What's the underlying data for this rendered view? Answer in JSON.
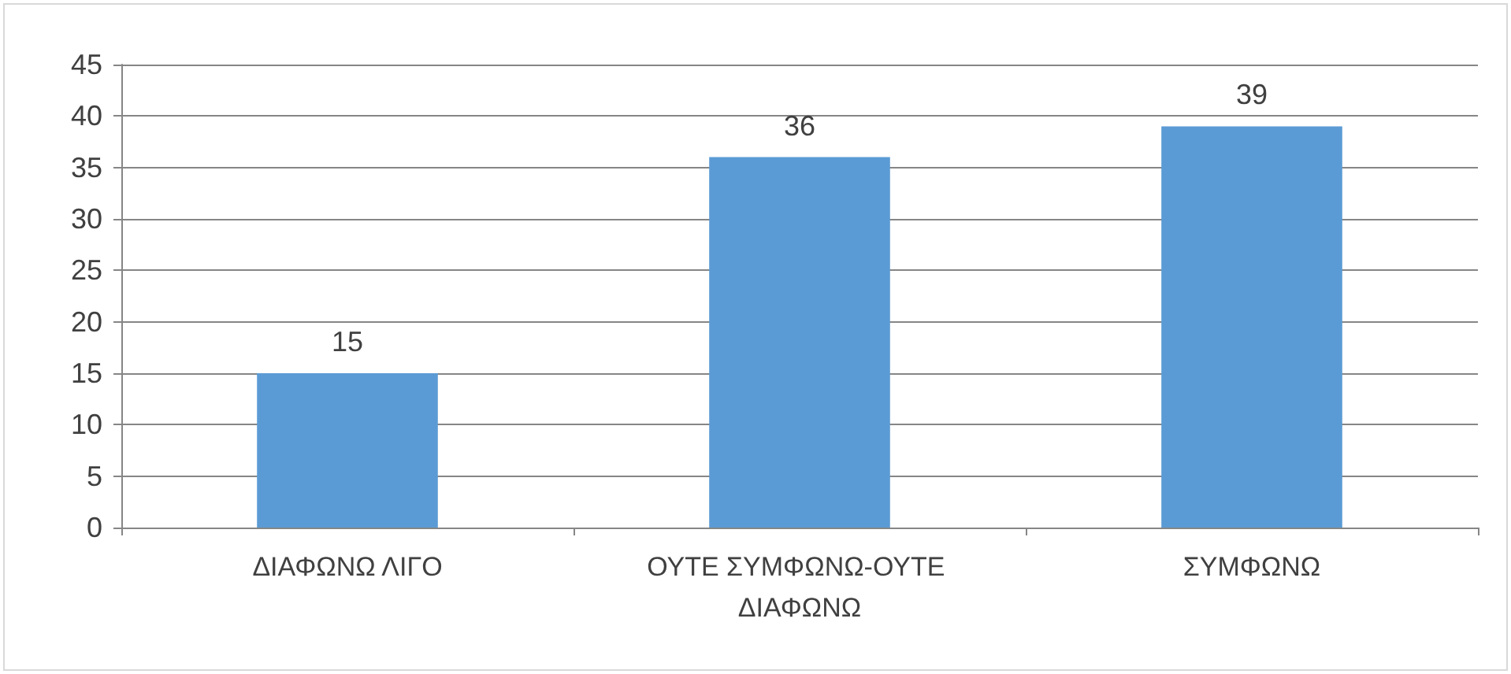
{
  "chart_data": {
    "type": "bar",
    "categories": [
      "ΔΙΑΦΩΝΩ ΛΙΓΟ",
      "ΟΥΤΕ ΣΥΜΦΩΝΩ-ΟΥΤΕ ΔΙΑΦΩΝΩ",
      "ΣΥΜΦΩΝΩ"
    ],
    "values": [
      15,
      36,
      39
    ],
    "color": "#5b9bd5",
    "ylim": [
      0,
      45
    ],
    "yticks": [
      0,
      5,
      10,
      15,
      20,
      25,
      30,
      35,
      40,
      45
    ],
    "grid": "y",
    "data_labels": true
  }
}
